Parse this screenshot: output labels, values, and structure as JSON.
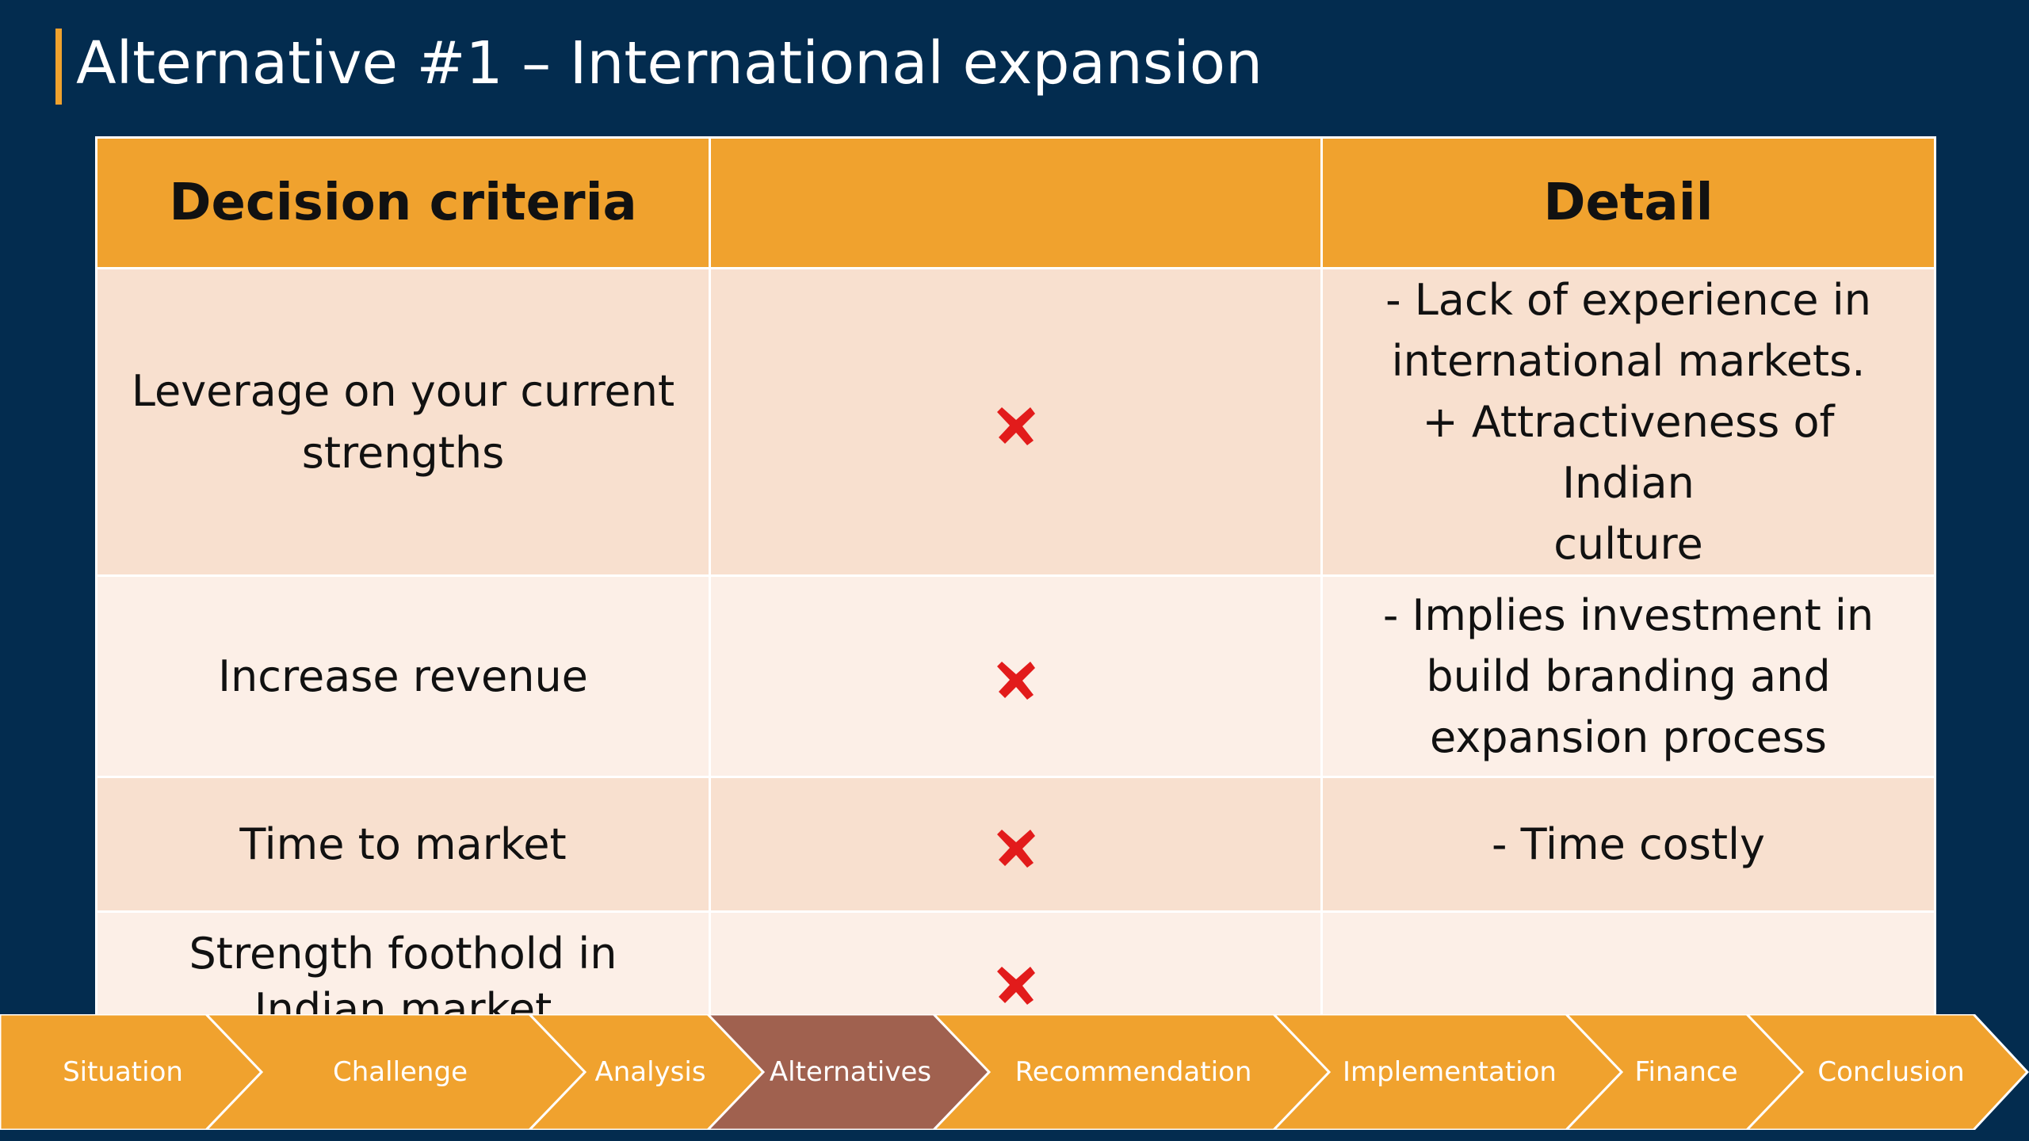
{
  "slide": {
    "title": "Alternative #1 – International expansion"
  },
  "table": {
    "headers": [
      "Decision criteria",
      "",
      "Detail"
    ],
    "rows": [
      {
        "criterion": "Leverage on your current strengths",
        "status_icon": "cross-icon",
        "detail_lines": [
          "-    Lack of experience in",
          "international markets.",
          "+ Attractiveness of Indian",
          "culture"
        ]
      },
      {
        "criterion": "Increase revenue",
        "status_icon": "cross-icon",
        "detail_lines": [
          "- Implies investment in",
          "build branding and",
          "expansion process"
        ]
      },
      {
        "criterion": "Time to market",
        "status_icon": "cross-icon",
        "detail_lines": [
          "- Time costly"
        ]
      },
      {
        "criterion": "Strength foothold in Indian market",
        "status_icon": "cross-icon",
        "detail_lines": []
      }
    ]
  },
  "nav": {
    "items": [
      "Situation",
      "Challenge",
      "Analysis",
      "Alternatives",
      "Recommendation",
      "Implementation",
      "Finance",
      "Conclusion"
    ],
    "active": "Alternatives"
  },
  "colors": {
    "background": "#032c4f",
    "accent": "#f0a22e",
    "active_step": "#a0614f",
    "cross": "#e21b1b",
    "row_odd": "#f8e0cf",
    "row_even": "#fcefe7"
  }
}
